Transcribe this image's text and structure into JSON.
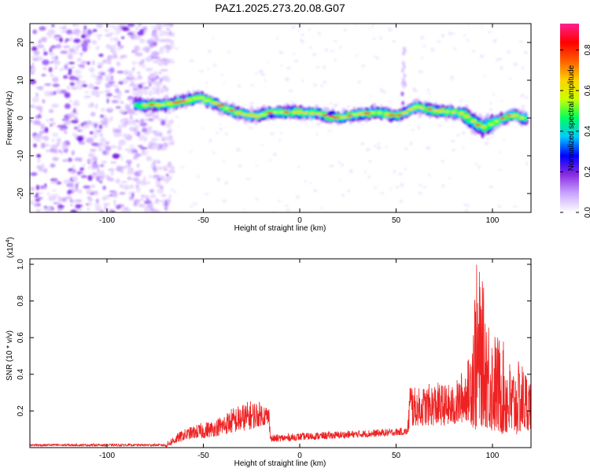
{
  "title": "PAZ1.2025.273.20.08.G07",
  "chart_data": [
    {
      "type": "heatmap",
      "name": "spectrogram",
      "xlabel": "Height of straight line (km)",
      "ylabel": "Frequency (Hz)",
      "xlim": [
        -140,
        120
      ],
      "ylim": [
        -25,
        25
      ],
      "xticks": [
        -100,
        -50,
        0,
        50,
        100
      ],
      "yticks": [
        -20,
        -10,
        0,
        10,
        20
      ],
      "colorbar": {
        "label": "Normalized spectral amplitude",
        "range": [
          0.0,
          0.93
        ],
        "ticks": [
          0.0,
          0.2,
          0.4,
          0.6,
          0.8
        ],
        "tick_labels": [
          "0.0",
          "0.2",
          "0.4",
          "0.6",
          "0.8"
        ],
        "colormap": [
          "#ffffff",
          "#c9a6ff",
          "#8a2be2",
          "#0000ff",
          "#00c8ff",
          "#00ff60",
          "#c8ff00",
          "#ffd200",
          "#ff6000",
          "#ff0000",
          "#ff2090"
        ]
      },
      "ridge": {
        "height_km": [
          -85,
          -80,
          -70,
          -60,
          -52,
          -45,
          -38,
          -30,
          -22,
          -15,
          -5,
          0,
          10,
          20,
          30,
          40,
          50,
          55,
          60,
          70,
          80,
          85,
          90,
          95,
          100,
          110,
          118
        ],
        "frequency_hz": [
          3.5,
          3.5,
          3.5,
          4.5,
          5.5,
          4,
          2.5,
          1,
          0.5,
          1.5,
          1.5,
          1.5,
          1,
          0,
          1,
          1.5,
          0.5,
          1.5,
          3,
          2,
          1.5,
          1,
          -1,
          -2.5,
          -1.5,
          1,
          -0.5
        ]
      },
      "noise_region_km": [
        -140,
        -70
      ]
    },
    {
      "type": "line",
      "name": "snr",
      "xlabel": "Height of straight line (km)",
      "ylabel": "SNR (10 * v/v)",
      "scale_label": "(x10",
      "scale_exponent": "4",
      "scale_close": ")",
      "xlim": [
        -140,
        120
      ],
      "ylim": [
        0,
        1.03
      ],
      "xticks": [
        -100,
        -50,
        0,
        50,
        100
      ],
      "yticks": [
        0.2,
        0.4,
        0.6,
        0.8,
        1.0
      ],
      "ytick_labels": [
        "0.2",
        "0.4",
        "0.6",
        "0.8",
        "1.0"
      ],
      "color": "#ee2222",
      "envelope": {
        "height_km": [
          -140,
          -70,
          -65,
          -60,
          -55,
          -50,
          -45,
          -40,
          -35,
          -30,
          -25,
          -20,
          -16,
          -15,
          0,
          20,
          40,
          56,
          57,
          60,
          70,
          80,
          88,
          90,
          92,
          95,
          100,
          105,
          110,
          115,
          120
        ],
        "snr_min": [
          0.0,
          0.0,
          0.02,
          0.04,
          0.05,
          0.05,
          0.06,
          0.07,
          0.08,
          0.09,
          0.1,
          0.12,
          0.12,
          0.03,
          0.04,
          0.05,
          0.06,
          0.07,
          0.1,
          0.12,
          0.12,
          0.12,
          0.15,
          0.1,
          0.08,
          0.12,
          0.08,
          0.07,
          0.05,
          0.08,
          0.1
        ],
        "snr_max": [
          0.02,
          0.02,
          0.07,
          0.1,
          0.12,
          0.14,
          0.15,
          0.18,
          0.22,
          0.24,
          0.26,
          0.25,
          0.23,
          0.07,
          0.08,
          0.09,
          0.1,
          0.11,
          0.4,
          0.32,
          0.36,
          0.34,
          0.5,
          0.85,
          1.03,
          0.9,
          0.65,
          0.6,
          0.45,
          0.48,
          0.38
        ]
      }
    }
  ]
}
